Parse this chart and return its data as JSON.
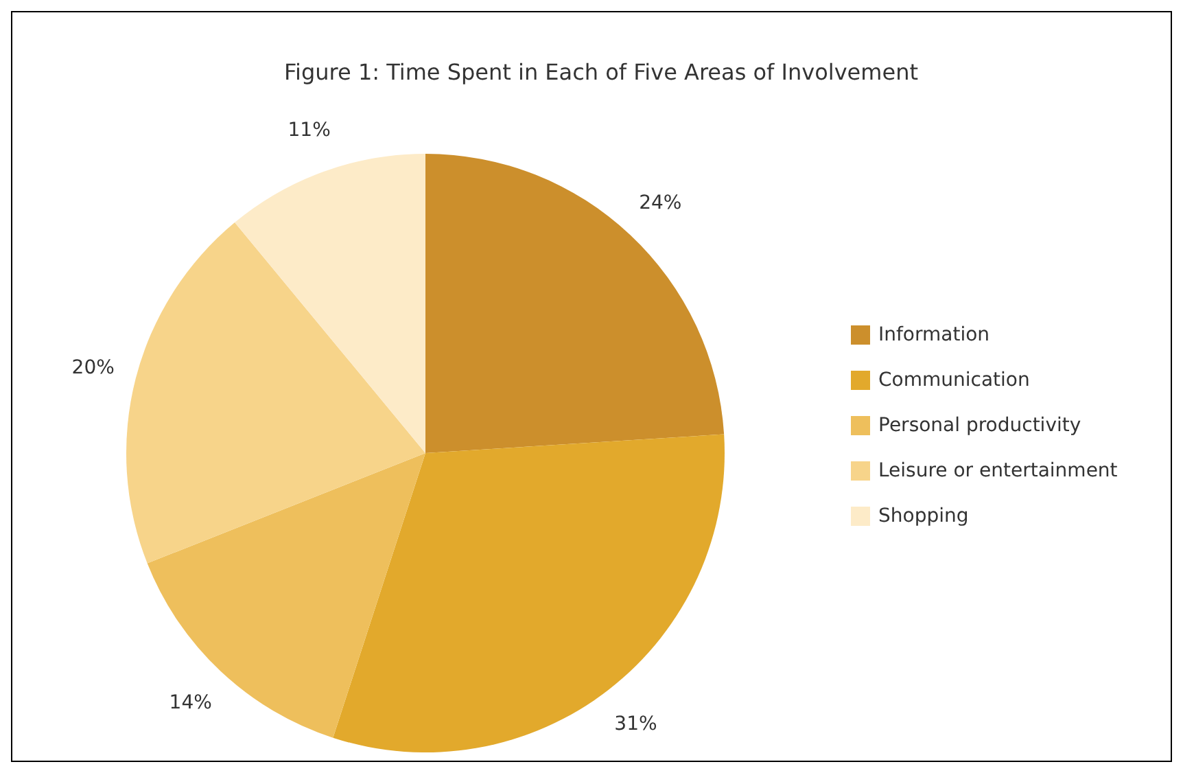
{
  "chart_data": {
    "type": "pie",
    "title": "Figure 1: Time Spent in Each of Five Areas of Involvement",
    "categories": [
      "Information",
      "Communication",
      "Personal productivity",
      "Leisure or entertainment",
      "Shopping"
    ],
    "values": [
      24,
      31,
      14,
      20,
      11
    ],
    "colors": [
      "#cc8f2c",
      "#e2a92c",
      "#eebf5c",
      "#f7d48a",
      "#fdebc8"
    ],
    "value_labels": [
      "24%",
      "31%",
      "14%",
      "20%",
      "11%"
    ],
    "legend": "right"
  }
}
